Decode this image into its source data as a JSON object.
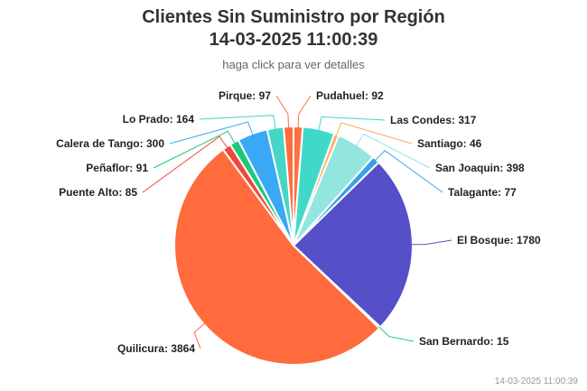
{
  "header": {
    "title_line1": "Clientes Sin Suministro por Región",
    "title_line2": "14-03-2025 11:00:39",
    "subtitle": "haga click para ver detalles"
  },
  "footer": {
    "timestamp": "14-03-2025 11:00:39"
  },
  "chart_data": {
    "type": "pie",
    "title": "Clientes Sin Suministro por Región 14-03-2025 11:00:39",
    "subtitle": "haga click para ver detalles",
    "slices": [
      {
        "name": "Pudahuel",
        "value": 92,
        "color": "#ff7043"
      },
      {
        "name": "Las Condes",
        "value": 317,
        "color": "#40d9c9"
      },
      {
        "name": "Santiago",
        "value": 46,
        "color": "#ffab66"
      },
      {
        "name": "San Joaquin",
        "value": 398,
        "color": "#93e6e0"
      },
      {
        "name": "Talagante",
        "value": 77,
        "color": "#3aa0e8"
      },
      {
        "name": "El Bosque",
        "value": 1780,
        "color": "#5550c8"
      },
      {
        "name": "San Bernardo",
        "value": 15,
        "color": "#1ec97d"
      },
      {
        "name": "Quilicura",
        "value": 3864,
        "color": "#ff6b3d"
      },
      {
        "name": "Puente Alto",
        "value": 85,
        "color": "#f0483c"
      },
      {
        "name": "Peñaflor",
        "value": 91,
        "color": "#1ec97d"
      },
      {
        "name": "Calera de Tango",
        "value": 300,
        "color": "#3aa9f5"
      },
      {
        "name": "Lo Prado",
        "value": 164,
        "color": "#45d6c8"
      },
      {
        "name": "Pirque",
        "value": 97,
        "color": "#ff6b3d"
      }
    ]
  }
}
